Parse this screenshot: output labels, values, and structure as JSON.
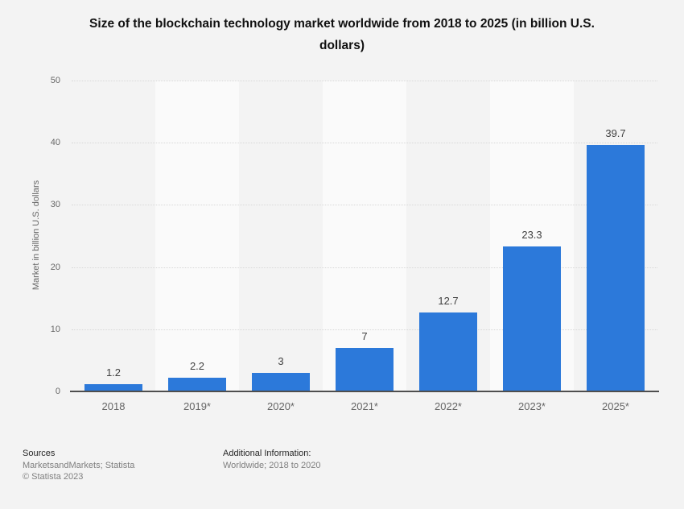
{
  "title_lines": [
    "Size of the blockchain technology market worldwide from 2018 to 2025 (in billion U.S.",
    "dollars)"
  ],
  "chart_data": {
    "type": "bar",
    "title": "Size of the blockchain technology market worldwide from 2018 to 2025 (in billion U.S. dollars)",
    "categories": [
      "2018",
      "2019*",
      "2020*",
      "2021*",
      "2022*",
      "2023*",
      "2025*"
    ],
    "values": [
      1.2,
      2.2,
      3,
      7,
      12.7,
      23.3,
      39.7
    ],
    "value_labels": [
      "1.2",
      "2.2",
      "3",
      "7",
      "12.7",
      "23.3",
      "39.7"
    ],
    "xlabel": "",
    "ylabel": "Market in billion U.S. dollars",
    "ylim": [
      0,
      50
    ],
    "yticks": [
      0,
      10,
      20,
      30,
      40,
      50
    ],
    "grid": "horizontal dotted gridlines at each y tick",
    "legend": "none",
    "bar_color": "#2c79da",
    "band_color_odd": "#fafafa",
    "band_color_even": "#f3f3f3",
    "gridline_color": "#d8d8d8",
    "axis_line_color": "#4e4e4e"
  },
  "footer": {
    "sources_heading": "Sources",
    "sources_line": "MarketsandMarkets; Statista",
    "copyright_line": "© Statista 2023",
    "additional_heading": "Additional Information:",
    "additional_line": "Worldwide; 2018 to 2020"
  }
}
